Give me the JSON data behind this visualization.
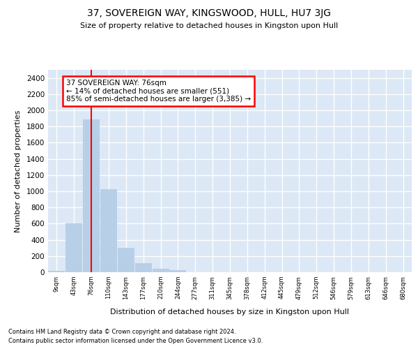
{
  "title_line1": "37, SOVEREIGN WAY, KINGSWOOD, HULL, HU7 3JG",
  "title_line2": "Size of property relative to detached houses in Kingston upon Hull",
  "xlabel": "Distribution of detached houses by size in Kingston upon Hull",
  "ylabel": "Number of detached properties",
  "categories": [
    "9sqm",
    "43sqm",
    "76sqm",
    "110sqm",
    "143sqm",
    "177sqm",
    "210sqm",
    "244sqm",
    "277sqm",
    "311sqm",
    "345sqm",
    "378sqm",
    "412sqm",
    "445sqm",
    "479sqm",
    "512sqm",
    "546sqm",
    "579sqm",
    "613sqm",
    "646sqm",
    "680sqm"
  ],
  "values": [
    20,
    600,
    1890,
    1030,
    300,
    115,
    45,
    25,
    0,
    0,
    0,
    0,
    0,
    0,
    0,
    0,
    0,
    0,
    0,
    0,
    0
  ],
  "bar_color": "#b8cfe8",
  "property_line_x": 2,
  "annotation_text": "37 SOVEREIGN WAY: 76sqm\n← 14% of detached houses are smaller (551)\n85% of semi-detached houses are larger (3,385) →",
  "ylim": [
    0,
    2500
  ],
  "yticks": [
    0,
    200,
    400,
    600,
    800,
    1000,
    1200,
    1400,
    1600,
    1800,
    2000,
    2200,
    2400
  ],
  "bg_color": "#dce8f5",
  "grid_color": "#ffffff",
  "footnote1": "Contains HM Land Registry data © Crown copyright and database right 2024.",
  "footnote2": "Contains public sector information licensed under the Open Government Licence v3.0."
}
